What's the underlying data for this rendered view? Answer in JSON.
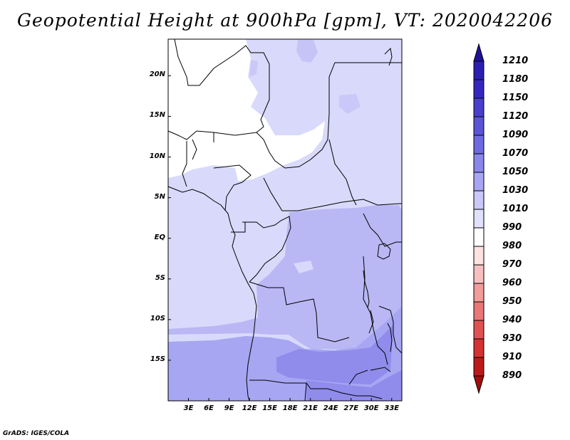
{
  "title": "Geopotential Height at 900hPa [gpm], VT: 2020042206",
  "credit": "GrADS: IGES/COLA",
  "map": {
    "variable": "Geopotential Height",
    "level": "900hPa",
    "units": "gpm",
    "valid_time": "2020042206",
    "lat_range": [
      -20,
      24.5
    ],
    "lon_range": [
      0,
      34.5
    ],
    "lat_labels": [
      {
        "value": 20,
        "text": "20N"
      },
      {
        "value": 15,
        "text": "15N"
      },
      {
        "value": 10,
        "text": "10N"
      },
      {
        "value": 5,
        "text": "5N"
      },
      {
        "value": 0,
        "text": "EQ"
      },
      {
        "value": -5,
        "text": "5S"
      },
      {
        "value": -10,
        "text": "10S"
      },
      {
        "value": -15,
        "text": "15S"
      }
    ],
    "lon_labels": [
      {
        "value": 3,
        "text": "3E"
      },
      {
        "value": 6,
        "text": "6E"
      },
      {
        "value": 9,
        "text": "9E"
      },
      {
        "value": 12,
        "text": "12E"
      },
      {
        "value": 15,
        "text": "15E"
      },
      {
        "value": 18,
        "text": "18E"
      },
      {
        "value": 21,
        "text": "21E"
      },
      {
        "value": 24,
        "text": "24E"
      },
      {
        "value": 27,
        "text": "27E"
      },
      {
        "value": 30,
        "text": "30E"
      },
      {
        "value": 33,
        "text": "33E"
      }
    ]
  },
  "colorbar": {
    "levels": [
      "1210",
      "1180",
      "1150",
      "1120",
      "1090",
      "1070",
      "1050",
      "1030",
      "1010",
      "990",
      "980",
      "970",
      "960",
      "950",
      "940",
      "930",
      "910",
      "890"
    ],
    "colors": [
      "#20109c",
      "#2a1fb0",
      "#3527bd",
      "#4a3fcb",
      "#5b55d6",
      "#6e6ae0",
      "#8a87ea",
      "#a8a6f2",
      "#c9c8f8",
      "#e1e1fc",
      "#ffffff",
      "#fde2e2",
      "#f7c0c0",
      "#f29c9c",
      "#ea7777",
      "#e05252",
      "#d33333",
      "#bb1a1a",
      "#a30c0c"
    ]
  }
}
